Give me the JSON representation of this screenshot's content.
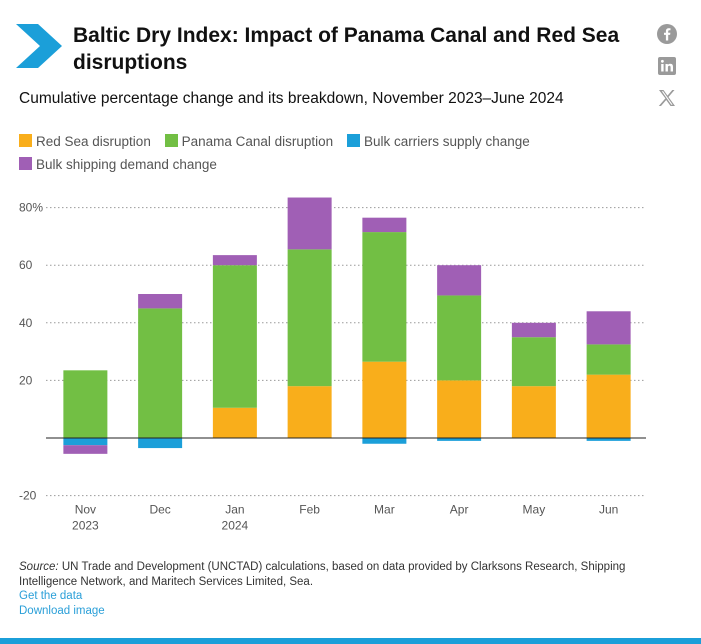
{
  "header": {
    "title": "Baltic Dry Index: Impact of Panama Canal and Red Sea disruptions",
    "subtitle": "Cumulative percentage change and its breakdown, November 2023–June 2024",
    "brand_color": "#1b9fd9"
  },
  "share": [
    {
      "name": "facebook-icon",
      "label": "f"
    },
    {
      "name": "linkedin-icon",
      "label": "in"
    },
    {
      "name": "x-icon",
      "label": "X"
    }
  ],
  "legend": [
    {
      "label": "Red Sea disruption",
      "color": "#f9ae1b"
    },
    {
      "label": "Panama Canal disruption",
      "color": "#72bf44"
    },
    {
      "label": "Bulk carriers supply change",
      "color": "#1b9fd9"
    },
    {
      "label": "Bulk shipping demand change",
      "color": "#a05fb5"
    }
  ],
  "chart_data": {
    "type": "bar",
    "stacked": true,
    "categories": [
      "Nov 2023",
      "Dec",
      "Jan 2024",
      "Feb",
      "Mar",
      "Apr",
      "May",
      "Jun"
    ],
    "category_lines": [
      [
        "Nov",
        "2023"
      ],
      [
        "Dec"
      ],
      [
        "Jan",
        "2024"
      ],
      [
        "Feb"
      ],
      [
        "Mar"
      ],
      [
        "Apr"
      ],
      [
        "May"
      ],
      [
        "Jun"
      ]
    ],
    "series": [
      {
        "name": "Red Sea disruption",
        "color": "#f9ae1b",
        "values": [
          0,
          0,
          10.5,
          18,
          26.5,
          20,
          18,
          22
        ]
      },
      {
        "name": "Panama Canal disruption",
        "color": "#72bf44",
        "values": [
          23.5,
          45,
          49.5,
          47.5,
          45,
          29.5,
          17,
          10.5
        ]
      },
      {
        "name": "Bulk carriers supply change",
        "color": "#1b9fd9",
        "values": [
          -2.5,
          -3.5,
          0,
          0,
          -2,
          -1,
          0,
          -1
        ]
      },
      {
        "name": "Bulk shipping demand change",
        "color": "#a05fb5",
        "values": [
          -3,
          5,
          3.5,
          18,
          5,
          10.5,
          5,
          11.5
        ]
      }
    ],
    "ylim": [
      -20,
      80
    ],
    "yticks": [
      {
        "value": 80,
        "label": "80%"
      },
      {
        "value": 60,
        "label": "60"
      },
      {
        "value": 40,
        "label": "40"
      },
      {
        "value": 20,
        "label": "20"
      },
      {
        "value": 0,
        "label": ""
      },
      {
        "value": -20,
        "label": "-20"
      }
    ],
    "grid": true,
    "legend_position": "top-left"
  },
  "source": {
    "prefix": "Source:",
    "text": "UN Trade and Development (UNCTAD) calculations, based on data provided by Clarksons Research, Shipping Intelligence Network, and Maritech Services Limited, Sea."
  },
  "links": {
    "get_data": "Get the data",
    "download_image": "Download image"
  }
}
